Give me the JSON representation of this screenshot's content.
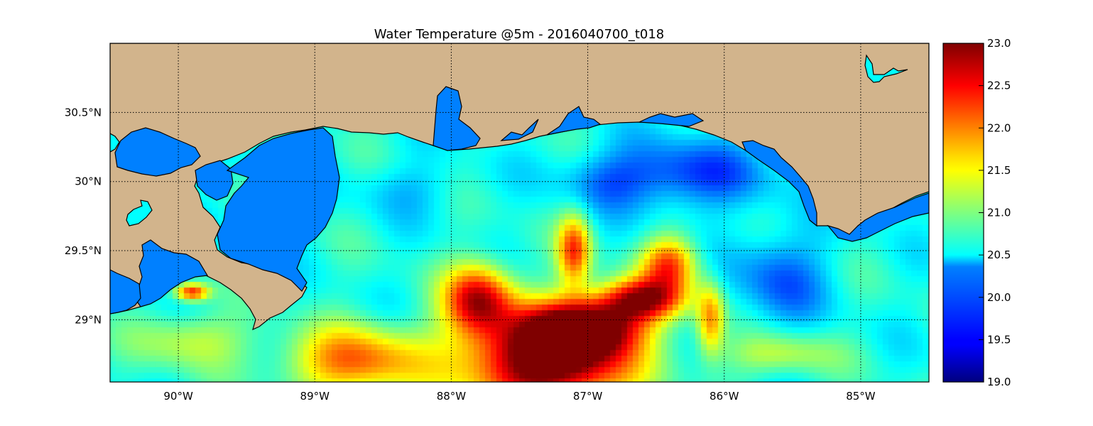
{
  "title": "Water Temperature @5m - 2016040700_t018",
  "map": {
    "lon_range": [
      -90.5,
      -84.5
    ],
    "lat_range": [
      28.55,
      31.0
    ],
    "lon_ticks": [
      {
        "value": -90,
        "label": "90°W"
      },
      {
        "value": -89,
        "label": "89°W"
      },
      {
        "value": -88,
        "label": "88°W"
      },
      {
        "value": -87,
        "label": "87°W"
      },
      {
        "value": -86,
        "label": "86°W"
      },
      {
        "value": -85,
        "label": "85°W"
      }
    ],
    "lat_ticks": [
      {
        "value": 30.5,
        "label": "30.5°N"
      },
      {
        "value": 30.0,
        "label": "30°N"
      },
      {
        "value": 29.5,
        "label": "29.5°N"
      },
      {
        "value": 29.0,
        "label": "29°N"
      }
    ],
    "grid": true,
    "land_color": "#d2b48c",
    "inland_water_color": "#0080ff",
    "lake_color": "#00ffff"
  },
  "colorbar": {
    "min": 19.0,
    "max": 23.0,
    "colormap": "jet",
    "ticks": [
      {
        "value": 23.0,
        "label": "23.0"
      },
      {
        "value": 22.5,
        "label": "22.5"
      },
      {
        "value": 22.0,
        "label": "22.0"
      },
      {
        "value": 21.5,
        "label": "21.5"
      },
      {
        "value": 21.0,
        "label": "21.0"
      },
      {
        "value": 20.5,
        "label": "20.5"
      },
      {
        "value": 20.0,
        "label": "20.0"
      },
      {
        "value": 19.5,
        "label": "19.5"
      },
      {
        "value": 19.0,
        "label": "19.0"
      }
    ]
  },
  "temperature_field": {
    "base": 20.6,
    "features": [
      {
        "lon": -87.3,
        "lat": 28.7,
        "sx": 0.6,
        "sy": 0.35,
        "amp": 2.8
      },
      {
        "lon": -87.0,
        "lat": 28.95,
        "sx": 0.4,
        "sy": 0.2,
        "amp": 2.2
      },
      {
        "lon": -86.6,
        "lat": 29.15,
        "sx": 0.3,
        "sy": 0.15,
        "amp": 2.0
      },
      {
        "lon": -87.8,
        "lat": 29.15,
        "sx": 0.25,
        "sy": 0.25,
        "amp": 2.0
      },
      {
        "lon": -87.1,
        "lat": 29.5,
        "sx": 0.12,
        "sy": 0.25,
        "amp": 1.6
      },
      {
        "lon": -86.4,
        "lat": 29.4,
        "sx": 0.2,
        "sy": 0.2,
        "amp": 1.6
      },
      {
        "lon": -86.1,
        "lat": 29.0,
        "sx": 0.1,
        "sy": 0.25,
        "amp": 1.3
      },
      {
        "lon": -88.7,
        "lat": 28.7,
        "sx": 0.5,
        "sy": 0.25,
        "amp": 1.5
      },
      {
        "lon": -89.9,
        "lat": 28.85,
        "sx": 0.4,
        "sy": 0.2,
        "amp": 0.7
      },
      {
        "lon": -85.6,
        "lat": 28.75,
        "sx": 0.4,
        "sy": 0.15,
        "amp": 0.7
      },
      {
        "lon": -86.3,
        "lat": 30.05,
        "sx": 0.6,
        "sy": 0.25,
        "amp": -0.9
      },
      {
        "lon": -85.6,
        "lat": 29.3,
        "sx": 0.35,
        "sy": 0.35,
        "amp": -0.7
      },
      {
        "lon": -86.9,
        "lat": 30.0,
        "sx": 0.3,
        "sy": 0.2,
        "amp": -0.4
      },
      {
        "lon": -88.3,
        "lat": 29.95,
        "sx": 0.4,
        "sy": 0.2,
        "amp": -0.3
      },
      {
        "lon": -89.9,
        "lat": 29.2,
        "sx": 0.12,
        "sy": 0.06,
        "amp": 1.8
      }
    ]
  }
}
